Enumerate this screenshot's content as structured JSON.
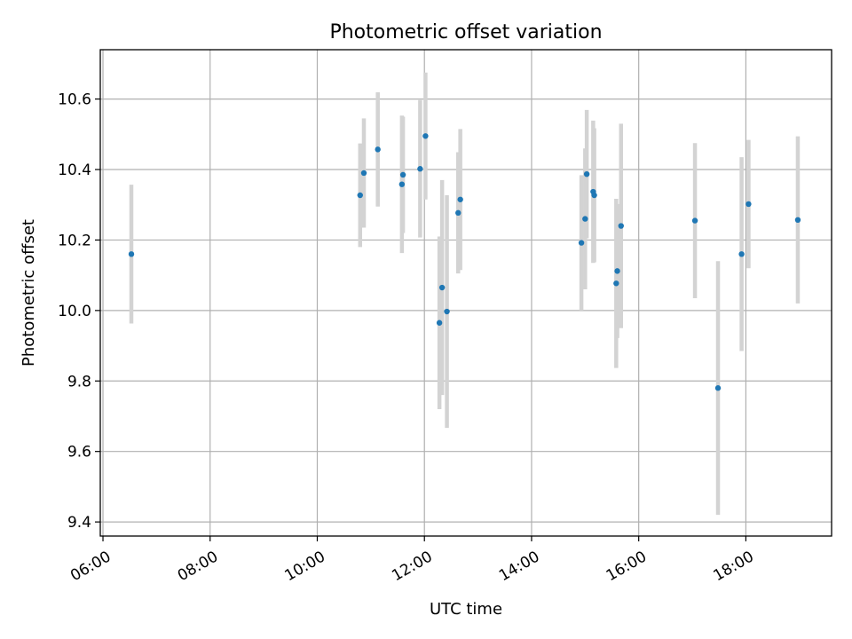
{
  "chart_data": {
    "type": "scatter",
    "title": "Photometric offset variation",
    "xlabel": "UTC time",
    "ylabel": "Photometric offset",
    "x_unit": "hours UTC",
    "xlim": [
      5.95,
      19.6
    ],
    "ylim": [
      9.36,
      10.74
    ],
    "x_ticks": [
      6,
      8,
      10,
      12,
      14,
      16,
      18
    ],
    "x_tick_labels": [
      "06:00",
      "08:00",
      "10:00",
      "12:00",
      "14:00",
      "16:00",
      "18:00"
    ],
    "y_ticks": [
      9.4,
      9.6,
      9.8,
      10.0,
      10.2,
      10.4,
      10.6
    ],
    "y_tick_labels": [
      "9.4",
      "9.6",
      "9.8",
      "10.0",
      "10.2",
      "10.4",
      "10.6"
    ],
    "grid": true,
    "marker_color": "#1f77b4",
    "errorbar_color": "#d3d3d3",
    "points": [
      {
        "t": 6.53,
        "y": 10.16,
        "err": 0.197
      },
      {
        "t": 10.8,
        "y": 10.327,
        "err": 0.147
      },
      {
        "t": 10.87,
        "y": 10.39,
        "err": 0.155
      },
      {
        "t": 11.13,
        "y": 10.457,
        "err": 0.162
      },
      {
        "t": 11.58,
        "y": 10.358,
        "err": 0.195
      },
      {
        "t": 11.6,
        "y": 10.385,
        "err": 0.165
      },
      {
        "t": 11.92,
        "y": 10.402,
        "err": 0.195
      },
      {
        "t": 12.02,
        "y": 10.495,
        "err": 0.18
      },
      {
        "t": 12.28,
        "y": 9.965,
        "err": 0.245
      },
      {
        "t": 12.33,
        "y": 10.065,
        "err": 0.305
      },
      {
        "t": 12.42,
        "y": 9.997,
        "err": 0.33
      },
      {
        "t": 12.63,
        "y": 10.277,
        "err": 0.172
      },
      {
        "t": 12.67,
        "y": 10.315,
        "err": 0.2
      },
      {
        "t": 14.93,
        "y": 10.192,
        "err": 0.192
      },
      {
        "t": 15.0,
        "y": 10.26,
        "err": 0.2
      },
      {
        "t": 15.03,
        "y": 10.387,
        "err": 0.182
      },
      {
        "t": 15.15,
        "y": 10.337,
        "err": 0.202
      },
      {
        "t": 15.17,
        "y": 10.327,
        "err": 0.19
      },
      {
        "t": 15.58,
        "y": 10.077,
        "err": 0.24
      },
      {
        "t": 15.6,
        "y": 10.112,
        "err": 0.19
      },
      {
        "t": 15.67,
        "y": 10.24,
        "err": 0.29
      },
      {
        "t": 17.05,
        "y": 10.255,
        "err": 0.22
      },
      {
        "t": 17.48,
        "y": 9.78,
        "err": 0.36
      },
      {
        "t": 17.92,
        "y": 10.16,
        "err": 0.275
      },
      {
        "t": 18.05,
        "y": 10.302,
        "err": 0.182
      },
      {
        "t": 18.97,
        "y": 10.257,
        "err": 0.237
      }
    ]
  }
}
